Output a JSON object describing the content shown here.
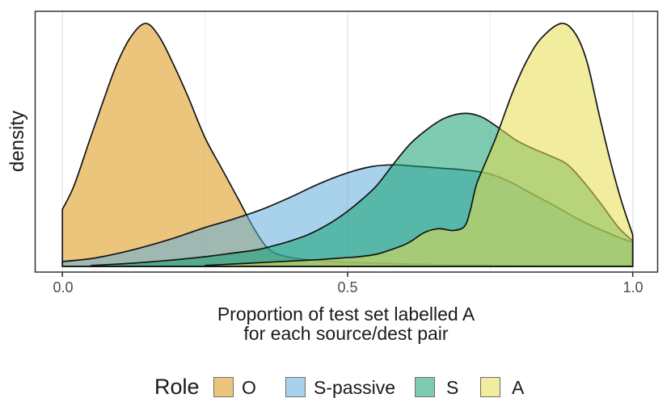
{
  "figure": {
    "y_axis_label": "density",
    "x_axis_label_line1": "Proportion of test set labelled A",
    "x_axis_label_line2": "for each source/dest pair",
    "legend_title": "Role"
  },
  "chart_data": {
    "type": "area",
    "subtype": "kernel-density",
    "title": "",
    "xlabel": "Proportion of test set labelled A for each source/dest pair",
    "ylabel": "density",
    "legend_title": "Role",
    "legend_position": "bottom",
    "legend_entries": [
      "O",
      "S-passive",
      "S",
      "A"
    ],
    "xlim": [
      0,
      1
    ],
    "x_tick_labels": [
      "0.0",
      "0.5",
      "1.0"
    ],
    "x_tick_values": [
      0,
      0.5,
      1
    ],
    "x_minor_gridlines": [
      0.25,
      0.75
    ],
    "ylim": [
      0,
      1.07
    ],
    "y_units": "relative density, normalized so tallest peak (O) = 1.0; y axis has no tick labels",
    "grid": "vertical gridlines only",
    "fill_opacity": 0.55,
    "outline_color": "#141414",
    "panel_border_color": "#333333",
    "gridline_major_color": "#e3e3e3",
    "gridline_minor_color": "#efefef",
    "tick_label_color": "#4d4d4d",
    "series": [
      {
        "name": "O",
        "fill": "#dc9513",
        "fill_over_white": "#ecc57d",
        "peak_x": 0.146,
        "points": [
          [
            0,
            0.235
          ],
          [
            0.02,
            0.33
          ],
          [
            0.045,
            0.5
          ],
          [
            0.07,
            0.67
          ],
          [
            0.095,
            0.83
          ],
          [
            0.12,
            0.945
          ],
          [
            0.146,
            1.0
          ],
          [
            0.17,
            0.945
          ],
          [
            0.195,
            0.83
          ],
          [
            0.22,
            0.7
          ],
          [
            0.25,
            0.53
          ],
          [
            0.28,
            0.4
          ],
          [
            0.31,
            0.27
          ],
          [
            0.335,
            0.16
          ],
          [
            0.36,
            0.075
          ],
          [
            0.385,
            0.045
          ],
          [
            0.42,
            0.03
          ],
          [
            0.46,
            0.022
          ],
          [
            0.52,
            0.015
          ],
          [
            0.6,
            0.01
          ],
          [
            0.7,
            0.006
          ],
          [
            0.8,
            0.003
          ],
          [
            0.9,
            0.002
          ],
          [
            1.0,
            0.002
          ]
        ]
      },
      {
        "name": "S-passive",
        "fill": "#61addc",
        "fill_over_white": "#a8d2ec",
        "peak_x": 0.58,
        "points": [
          [
            0,
            0.02
          ],
          [
            0.05,
            0.032
          ],
          [
            0.1,
            0.055
          ],
          [
            0.15,
            0.085
          ],
          [
            0.2,
            0.12
          ],
          [
            0.25,
            0.16
          ],
          [
            0.3,
            0.195
          ],
          [
            0.35,
            0.235
          ],
          [
            0.4,
            0.285
          ],
          [
            0.45,
            0.34
          ],
          [
            0.5,
            0.385
          ],
          [
            0.54,
            0.41
          ],
          [
            0.58,
            0.418
          ],
          [
            0.62,
            0.412
          ],
          [
            0.66,
            0.405
          ],
          [
            0.7,
            0.398
          ],
          [
            0.735,
            0.388
          ],
          [
            0.76,
            0.372
          ],
          [
            0.79,
            0.342
          ],
          [
            0.82,
            0.303
          ],
          [
            0.845,
            0.272
          ],
          [
            0.87,
            0.24
          ],
          [
            0.9,
            0.2
          ],
          [
            0.93,
            0.165
          ],
          [
            0.96,
            0.135
          ],
          [
            0.98,
            0.115
          ],
          [
            1.0,
            0.1
          ]
        ]
      },
      {
        "name": "S",
        "fill": "#14a073",
        "fill_over_white": "#7ecbb2",
        "peak_x": 0.705,
        "points": [
          [
            0.05,
            0.004
          ],
          [
            0.1,
            0.01
          ],
          [
            0.15,
            0.018
          ],
          [
            0.2,
            0.028
          ],
          [
            0.25,
            0.04
          ],
          [
            0.3,
            0.055
          ],
          [
            0.34,
            0.068
          ],
          [
            0.37,
            0.085
          ],
          [
            0.4,
            0.105
          ],
          [
            0.43,
            0.13
          ],
          [
            0.46,
            0.165
          ],
          [
            0.49,
            0.21
          ],
          [
            0.52,
            0.265
          ],
          [
            0.55,
            0.33
          ],
          [
            0.58,
            0.42
          ],
          [
            0.61,
            0.505
          ],
          [
            0.64,
            0.565
          ],
          [
            0.67,
            0.61
          ],
          [
            0.705,
            0.63
          ],
          [
            0.735,
            0.615
          ],
          [
            0.765,
            0.57
          ],
          [
            0.795,
            0.52
          ],
          [
            0.825,
            0.485
          ],
          [
            0.855,
            0.455
          ],
          [
            0.885,
            0.42
          ],
          [
            0.915,
            0.345
          ],
          [
            0.945,
            0.255
          ],
          [
            0.975,
            0.16
          ],
          [
            1.0,
            0.105
          ]
        ]
      },
      {
        "name": "A",
        "fill": "#e5dc4f",
        "fill_over_white": "#f1ec9e",
        "peak_x": 0.875,
        "points": [
          [
            0.25,
            0.004
          ],
          [
            0.3,
            0.01
          ],
          [
            0.35,
            0.016
          ],
          [
            0.4,
            0.022
          ],
          [
            0.45,
            0.028
          ],
          [
            0.49,
            0.035
          ],
          [
            0.52,
            0.04
          ],
          [
            0.55,
            0.05
          ],
          [
            0.575,
            0.068
          ],
          [
            0.605,
            0.095
          ],
          [
            0.635,
            0.14
          ],
          [
            0.66,
            0.155
          ],
          [
            0.685,
            0.148
          ],
          [
            0.705,
            0.165
          ],
          [
            0.715,
            0.23
          ],
          [
            0.725,
            0.33
          ],
          [
            0.735,
            0.39
          ],
          [
            0.76,
            0.53
          ],
          [
            0.79,
            0.72
          ],
          [
            0.815,
            0.85
          ],
          [
            0.84,
            0.94
          ],
          [
            0.875,
            1.0
          ],
          [
            0.9,
            0.955
          ],
          [
            0.92,
            0.84
          ],
          [
            0.94,
            0.635
          ],
          [
            0.96,
            0.44
          ],
          [
            0.98,
            0.27
          ],
          [
            1.0,
            0.13
          ]
        ]
      }
    ]
  }
}
